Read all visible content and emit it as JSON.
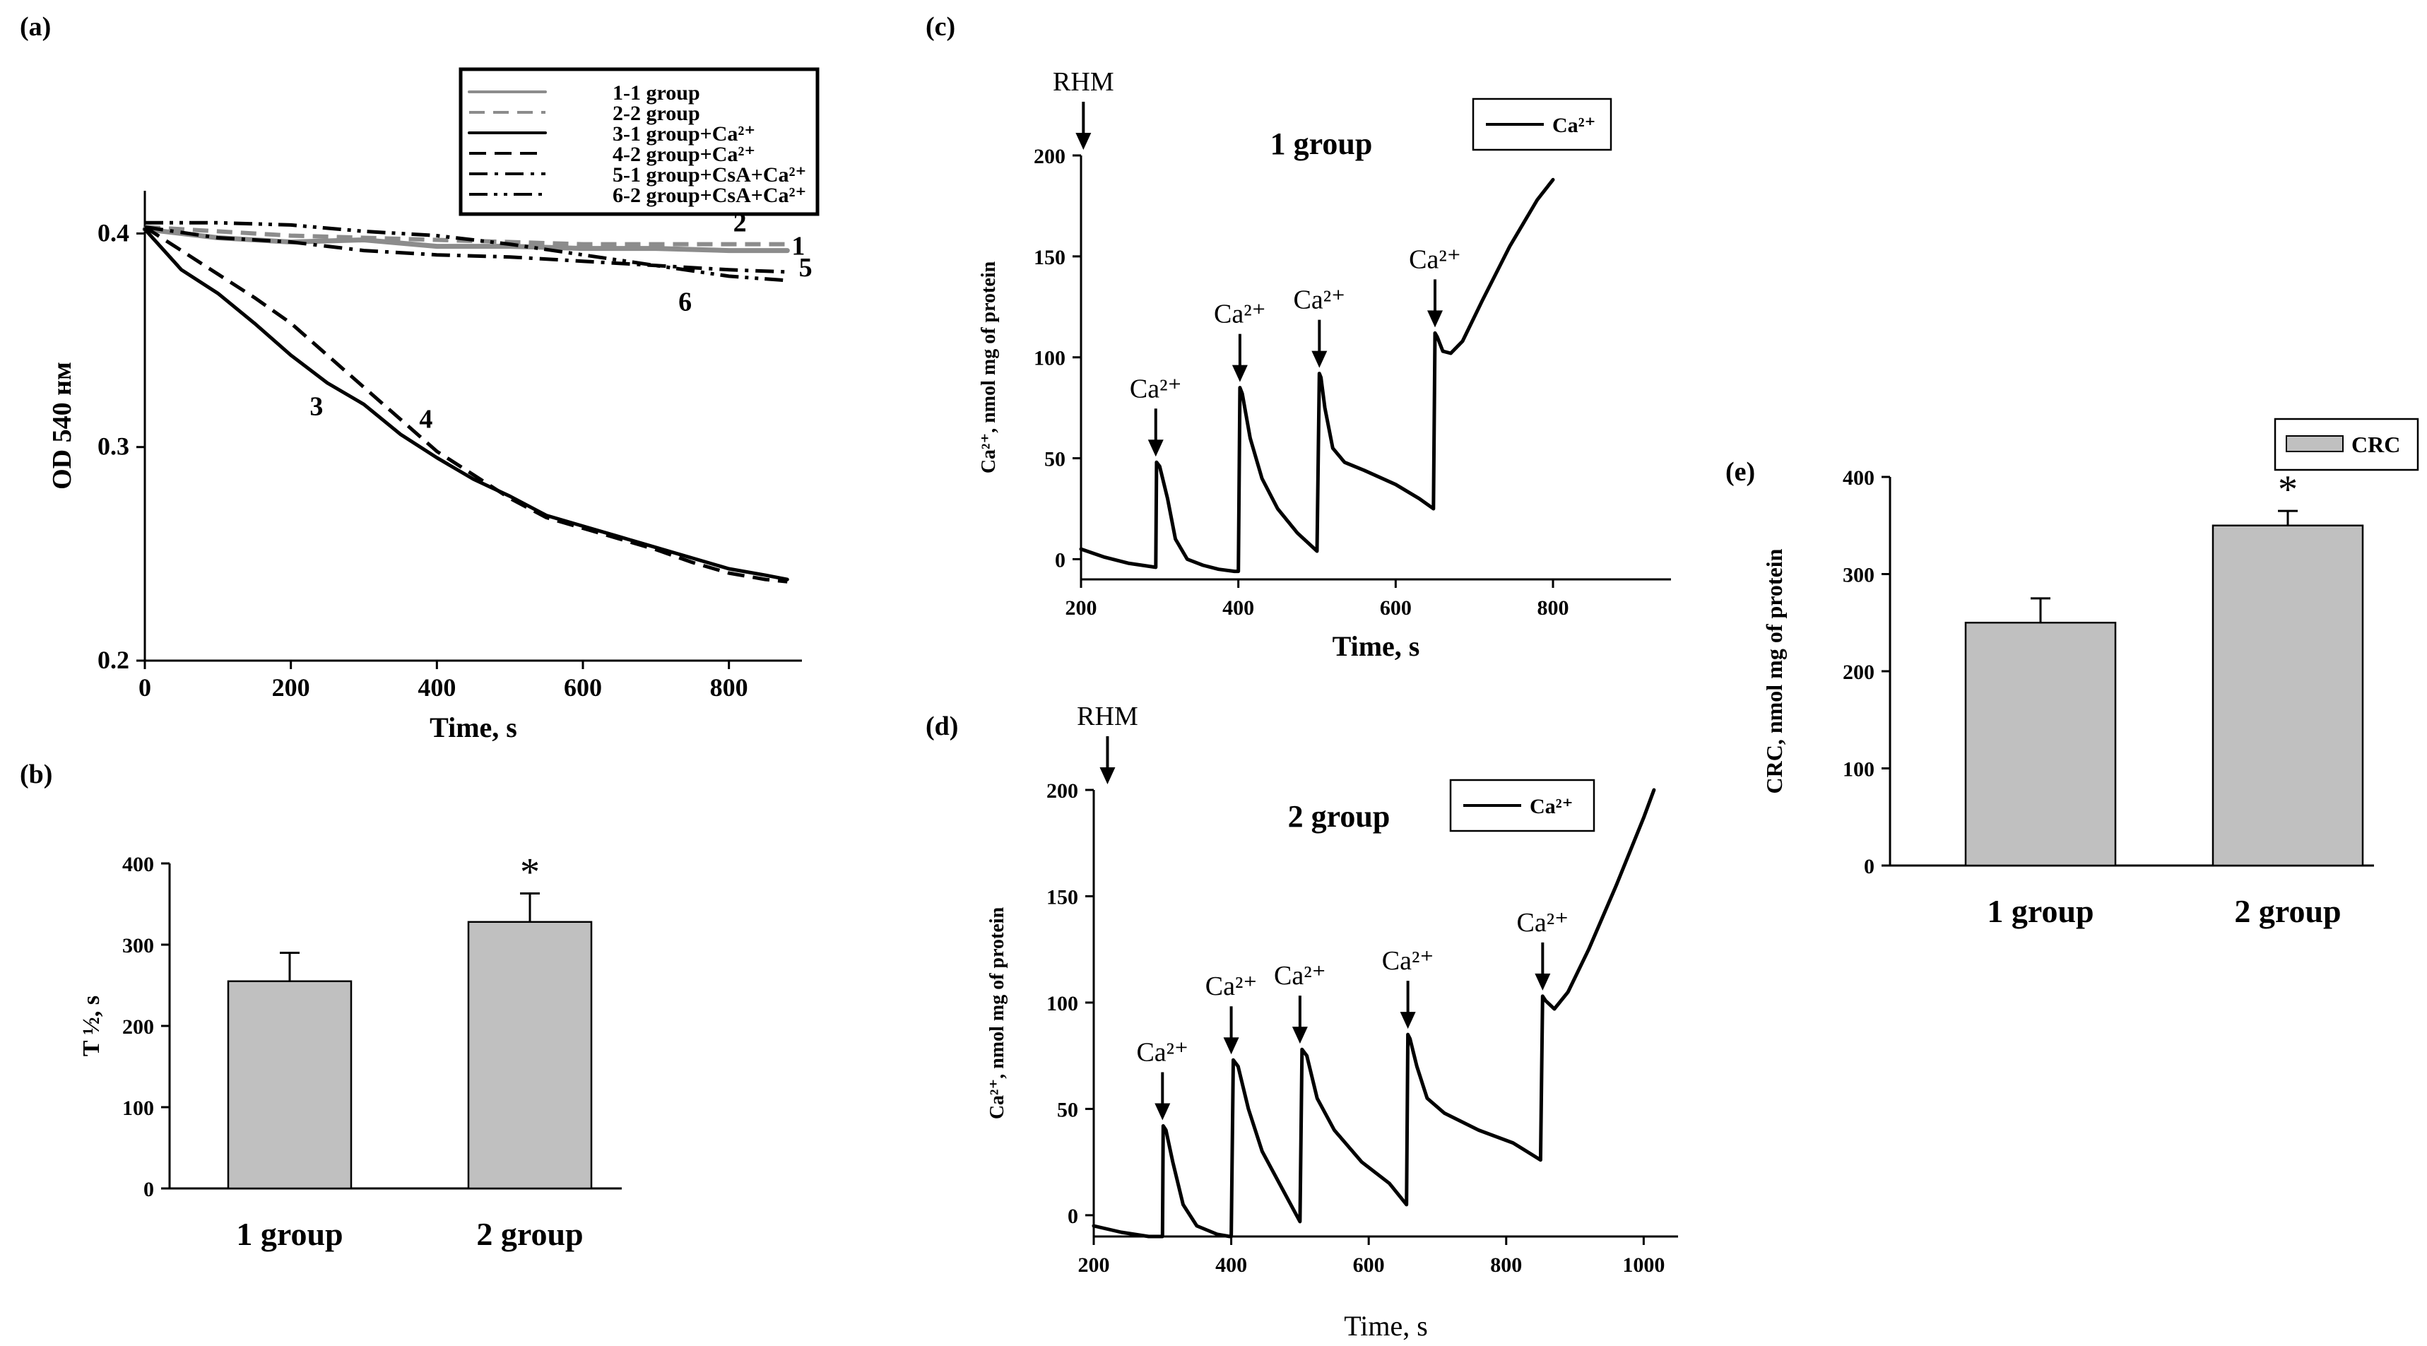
{
  "colors": {
    "bar_fill": "#c0c0c0",
    "line": "#000000",
    "gray_line": "#8c8c8c"
  },
  "chart_data": [
    {
      "panel": "(a)",
      "type": "line",
      "xlabel": "Time, s",
      "ylabel": "OD 540 нм",
      "xlim": [
        0,
        900
      ],
      "ylim": [
        0.2,
        0.42
      ],
      "xticks": [
        0,
        200,
        400,
        600,
        800
      ],
      "yticks": [
        0.2,
        0.3,
        0.4
      ],
      "legend": {
        "position": "top-right",
        "entries": [
          {
            "text": "1-1 group",
            "style": "gray-solid"
          },
          {
            "text": "2-2 group",
            "style": "gray-dashed"
          },
          {
            "text": "3-1 group+Ca²⁺",
            "style": "solid"
          },
          {
            "text": "4-2 group+Ca²⁺",
            "style": "dashed"
          },
          {
            "text": "5-1 group+CsA+Ca²⁺",
            "style": "dash-dot"
          },
          {
            "text": "6-2 group+CsA+Ca²⁺",
            "style": "dash-dot-dot"
          }
        ]
      },
      "series": [
        {
          "name": "1",
          "style": "gray-solid",
          "x": [
            0,
            100,
            200,
            300,
            400,
            500,
            600,
            700,
            800,
            880
          ],
          "y": [
            0.402,
            0.398,
            0.396,
            0.397,
            0.394,
            0.394,
            0.393,
            0.393,
            0.392,
            0.392
          ]
        },
        {
          "name": "2",
          "style": "gray-dashed",
          "x": [
            0,
            100,
            200,
            300,
            400,
            500,
            600,
            700,
            800,
            880
          ],
          "y": [
            0.403,
            0.401,
            0.399,
            0.398,
            0.397,
            0.396,
            0.395,
            0.395,
            0.395,
            0.395
          ]
        },
        {
          "name": "3",
          "style": "solid",
          "x": [
            0,
            50,
            100,
            150,
            200,
            250,
            300,
            350,
            400,
            450,
            500,
            550,
            600,
            650,
            700,
            750,
            800,
            850,
            880
          ],
          "y": [
            0.402,
            0.383,
            0.372,
            0.358,
            0.343,
            0.33,
            0.32,
            0.306,
            0.295,
            0.285,
            0.277,
            0.268,
            0.263,
            0.258,
            0.253,
            0.248,
            0.243,
            0.24,
            0.238
          ]
        },
        {
          "name": "4",
          "style": "dashed",
          "x": [
            0,
            50,
            100,
            150,
            200,
            250,
            300,
            350,
            400,
            450,
            500,
            550,
            600,
            650,
            700,
            750,
            800,
            850,
            880
          ],
          "y": [
            0.403,
            0.392,
            0.381,
            0.37,
            0.358,
            0.343,
            0.328,
            0.313,
            0.298,
            0.287,
            0.276,
            0.267,
            0.262,
            0.257,
            0.252,
            0.246,
            0.241,
            0.238,
            0.237
          ]
        },
        {
          "name": "5",
          "style": "dash-dot",
          "x": [
            0,
            100,
            200,
            300,
            400,
            500,
            600,
            700,
            800,
            880
          ],
          "y": [
            0.403,
            0.398,
            0.396,
            0.392,
            0.39,
            0.389,
            0.387,
            0.385,
            0.383,
            0.382
          ]
        },
        {
          "name": "6",
          "style": "dash-dot-dot",
          "x": [
            0,
            100,
            200,
            300,
            400,
            500,
            600,
            700,
            800,
            880
          ],
          "y": [
            0.405,
            0.405,
            0.404,
            0.401,
            0.399,
            0.395,
            0.39,
            0.385,
            0.38,
            0.378
          ]
        }
      ],
      "curve_labels": [
        {
          "text": "1",
          "x": 895,
          "y": 0.39
        },
        {
          "text": "2",
          "x": 815,
          "y": 0.401
        },
        {
          "text": "5",
          "x": 905,
          "y": 0.38
        },
        {
          "text": "6",
          "x": 740,
          "y": 0.364
        },
        {
          "text": "3",
          "x": 235,
          "y": 0.315
        },
        {
          "text": "4",
          "x": 385,
          "y": 0.309
        }
      ]
    },
    {
      "panel": "(b)",
      "type": "bar",
      "ylabel": "T ½, s",
      "ylim": [
        0,
        400
      ],
      "yticks": [
        0,
        100,
        200,
        300,
        400
      ],
      "categories": [
        "1 group",
        "2 group"
      ],
      "values": [
        255,
        328
      ],
      "errors": [
        35,
        35
      ],
      "significance": [
        "",
        "*"
      ]
    },
    {
      "panel": "(c)",
      "type": "line",
      "title": "1 group",
      "xlabel": "Time, s",
      "ylabel": "Ca²⁺, nmol mg of protein",
      "xlim": [
        200,
        950
      ],
      "ylim": [
        -10,
        200
      ],
      "xticks": [
        200,
        400,
        600,
        800
      ],
      "yticks": [
        0,
        50,
        100,
        150,
        200
      ],
      "legend": {
        "position": "top-right",
        "entries": [
          {
            "text": "Ca²⁺",
            "style": "solid"
          }
        ]
      },
      "series": [
        {
          "name": "Ca²⁺",
          "x": [
            200,
            230,
            260,
            295,
            296,
            300,
            310,
            320,
            335,
            355,
            375,
            395,
            400,
            402,
            405,
            415,
            430,
            450,
            475,
            500,
            503,
            505,
            510,
            520,
            535,
            560,
            600,
            630,
            648,
            650,
            653,
            660,
            670,
            685,
            710,
            745,
            780,
            800
          ],
          "y": [
            5,
            1,
            -2,
            -4,
            48,
            46,
            30,
            10,
            0,
            -3,
            -5,
            -6,
            -6,
            85,
            82,
            60,
            40,
            25,
            13,
            4,
            92,
            90,
            75,
            55,
            48,
            44,
            37,
            30,
            25,
            112,
            110,
            103,
            102,
            108,
            128,
            155,
            178,
            188
          ]
        }
      ],
      "annotations": [
        {
          "text": "RHM",
          "x": 203,
          "y": 200
        },
        {
          "text": "Ca²⁺",
          "x": 295,
          "y": 48
        },
        {
          "text": "Ca²⁺",
          "x": 402,
          "y": 85
        },
        {
          "text": "Ca²⁺",
          "x": 503,
          "y": 92
        },
        {
          "text": "Ca²⁺",
          "x": 650,
          "y": 112
        }
      ]
    },
    {
      "panel": "(d)",
      "type": "line",
      "title": "2 group",
      "xlabel": "Time, s",
      "ylabel": "Ca²⁺, nmol mg of protein",
      "xlim": [
        200,
        1050
      ],
      "ylim": [
        -10,
        200
      ],
      "xticks": [
        200,
        400,
        600,
        800,
        1000
      ],
      "yticks": [
        0,
        50,
        100,
        150,
        200
      ],
      "legend": {
        "position": "top-right",
        "entries": [
          {
            "text": "Ca²⁺",
            "style": "solid"
          }
        ]
      },
      "series": [
        {
          "name": "Ca²⁺",
          "x": [
            200,
            240,
            280,
            300,
            301,
            305,
            315,
            330,
            350,
            380,
            398,
            400,
            403,
            410,
            425,
            445,
            470,
            495,
            500,
            503,
            510,
            525,
            550,
            590,
            630,
            655,
            657,
            660,
            670,
            685,
            710,
            760,
            810,
            850,
            853,
            857,
            870,
            890,
            920,
            960,
            1000,
            1015
          ],
          "y": [
            -5,
            -8,
            -10,
            -10,
            42,
            40,
            25,
            5,
            -5,
            -9,
            -10,
            -10,
            73,
            70,
            50,
            30,
            15,
            0,
            -3,
            78,
            75,
            55,
            40,
            25,
            15,
            5,
            85,
            83,
            70,
            55,
            48,
            40,
            34,
            26,
            103,
            101,
            97,
            105,
            125,
            155,
            187,
            200
          ]
        }
      ],
      "annotations": [
        {
          "text": "RHM",
          "x": 220,
          "y": 200
        },
        {
          "text": "Ca²⁺",
          "x": 300,
          "y": 42
        },
        {
          "text": "Ca²⁺",
          "x": 400,
          "y": 73
        },
        {
          "text": "Ca²⁺",
          "x": 500,
          "y": 78
        },
        {
          "text": "Ca²⁺",
          "x": 657,
          "y": 85
        },
        {
          "text": "Ca²⁺",
          "x": 853,
          "y": 103
        }
      ]
    },
    {
      "panel": "(e)",
      "type": "bar",
      "ylabel": "CRC, nmol mg of protein",
      "ylim": [
        0,
        400
      ],
      "yticks": [
        0,
        100,
        200,
        300,
        400
      ],
      "categories": [
        "1 group",
        "2 group"
      ],
      "values": [
        250,
        350
      ],
      "errors": [
        25,
        15
      ],
      "significance": [
        "",
        "*"
      ],
      "legend": {
        "position": "top-right",
        "entries": [
          {
            "text": "CRC",
            "style": "bar"
          }
        ]
      }
    }
  ]
}
